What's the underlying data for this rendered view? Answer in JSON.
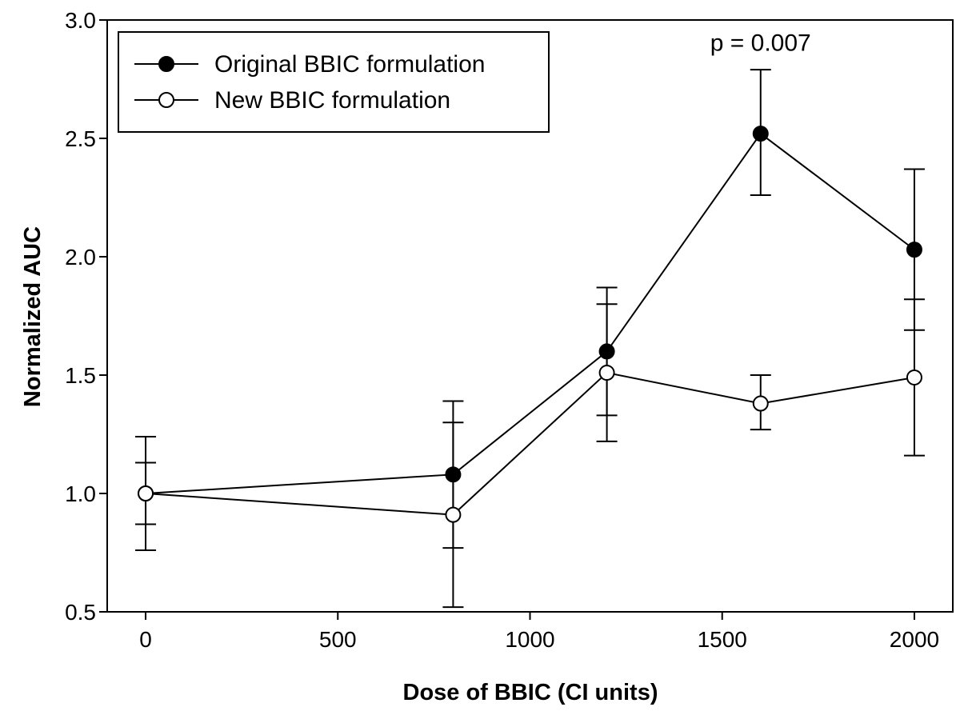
{
  "chart_data": {
    "type": "line",
    "xlabel": "Dose of BBIC (CI units)",
    "ylabel": "Normalized AUC",
    "xlim": [
      -100,
      2100
    ],
    "ylim": [
      0.5,
      3.0
    ],
    "xticks": [
      0,
      500,
      1000,
      1500,
      2000
    ],
    "yticks": [
      "0.5",
      "1.0",
      "1.5",
      "2.0",
      "2.5",
      "3.0"
    ],
    "grid": false,
    "legend_position": "top-left",
    "series": [
      {
        "name": "Original BBIC formulation",
        "marker": "filled-circle",
        "color": "#000000",
        "x": [
          0,
          800,
          1200,
          1600,
          2000
        ],
        "y": [
          1.0,
          1.08,
          1.6,
          2.52,
          2.03
        ],
        "err_low": [
          0.76,
          0.77,
          1.33,
          2.26,
          1.69
        ],
        "err_high": [
          1.13,
          1.39,
          1.87,
          2.79,
          2.37
        ]
      },
      {
        "name": "New BBIC formulation",
        "marker": "open-circle",
        "color": "#000000",
        "x": [
          0,
          800,
          1200,
          1600,
          2000
        ],
        "y": [
          1.0,
          0.91,
          1.51,
          1.38,
          1.49
        ],
        "err_low": [
          0.87,
          0.52,
          1.22,
          1.27,
          1.16
        ],
        "err_high": [
          1.24,
          1.3,
          1.8,
          1.5,
          1.82
        ]
      }
    ],
    "annotations": [
      {
        "text": "p = 0.007",
        "x": 1600,
        "y": 2.87
      }
    ]
  }
}
